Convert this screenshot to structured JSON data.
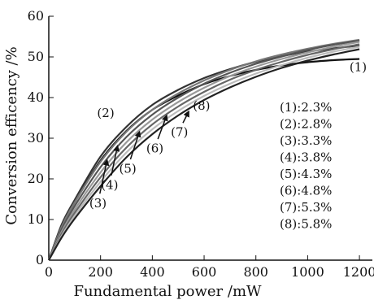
{
  "chart_data": {
    "type": "line",
    "xlabel": "Fundamental power /mW",
    "ylabel": "Conversion efficency /%",
    "xlim": [
      0,
      1250
    ],
    "ylim": [
      0,
      60
    ],
    "xticks": [
      0,
      200,
      400,
      600,
      800,
      1000,
      1200
    ],
    "yticks": [
      0,
      10,
      20,
      30,
      40,
      50,
      60
    ],
    "grid": false,
    "series": [
      {
        "name": "(1)",
        "color": "#111111",
        "x": [
          0,
          50,
          100,
          200,
          300,
          400,
          500,
          600,
          700,
          800,
          900,
          1000,
          1100,
          1200
        ],
        "y": [
          0,
          8.5,
          14.2,
          24.5,
          31.8,
          37.0,
          40.5,
          43.3,
          45.3,
          46.8,
          47.9,
          48.7,
          49.2,
          49.5
        ]
      },
      {
        "name": "(2)",
        "color": "#333333",
        "x": [
          0,
          50,
          100,
          200,
          300,
          400,
          500,
          600,
          700,
          800,
          900,
          1000,
          1100,
          1200
        ],
        "y": [
          0,
          8.8,
          14.8,
          25.5,
          32.8,
          38.2,
          41.9,
          44.8,
          47.0,
          48.8,
          50.2,
          51.3,
          52.1,
          52.8
        ]
      },
      {
        "name": "(3)",
        "color": "#777777",
        "x": [
          0,
          50,
          100,
          200,
          300,
          400,
          500,
          600,
          700,
          800,
          900,
          1000,
          1100,
          1200
        ],
        "y": [
          0,
          8.2,
          14.2,
          24.2,
          31.6,
          37.0,
          41.0,
          44.2,
          46.8,
          48.9,
          50.6,
          52.0,
          53.2,
          54.2
        ]
      },
      {
        "name": "(4)",
        "color": "#555555",
        "x": [
          0,
          50,
          100,
          200,
          300,
          400,
          500,
          600,
          700,
          800,
          900,
          1000,
          1100,
          1200
        ],
        "y": [
          0,
          7.6,
          13.3,
          22.9,
          30.3,
          35.8,
          40.0,
          43.4,
          46.1,
          48.3,
          50.1,
          51.7,
          53.0,
          54.0
        ]
      },
      {
        "name": "(5)",
        "color": "#999999",
        "x": [
          0,
          50,
          100,
          200,
          300,
          400,
          500,
          600,
          700,
          800,
          900,
          1000,
          1100,
          1200
        ],
        "y": [
          0,
          7.0,
          12.4,
          21.6,
          29.0,
          34.6,
          38.9,
          42.4,
          45.3,
          47.6,
          49.5,
          51.1,
          52.5,
          53.7
        ]
      },
      {
        "name": "(6)",
        "color": "#666666",
        "x": [
          0,
          50,
          100,
          200,
          300,
          400,
          500,
          600,
          700,
          800,
          900,
          1000,
          1100,
          1200
        ],
        "y": [
          0,
          6.5,
          11.6,
          20.4,
          27.7,
          33.4,
          37.8,
          41.4,
          44.4,
          46.8,
          48.8,
          50.5,
          51.9,
          53.1
        ]
      },
      {
        "name": "(7)",
        "color": "#bbbbbb",
        "x": [
          0,
          50,
          100,
          200,
          300,
          400,
          500,
          600,
          700,
          800,
          900,
          1000,
          1100,
          1200
        ],
        "y": [
          0,
          6.0,
          10.9,
          19.3,
          26.5,
          32.2,
          36.7,
          40.4,
          43.4,
          45.9,
          48.0,
          49.8,
          51.3,
          52.5
        ]
      },
      {
        "name": "(8)",
        "color": "#222222",
        "x": [
          0,
          50,
          100,
          200,
          300,
          400,
          500,
          600,
          700,
          800,
          900,
          1000,
          1100,
          1200
        ],
        "y": [
          0,
          5.6,
          10.2,
          18.2,
          25.3,
          31.0,
          35.6,
          39.4,
          42.5,
          45.1,
          47.3,
          49.1,
          50.6,
          51.9
        ]
      }
    ],
    "legend": [
      {
        "label": "(1):",
        "value": "2.3%"
      },
      {
        "label": "(2):",
        "value": "2.8%"
      },
      {
        "label": "(3):",
        "value": "3.3%"
      },
      {
        "label": "(4):",
        "value": "3.8%"
      },
      {
        "label": "(5):",
        "value": "4.3%"
      },
      {
        "label": "(6):",
        "value": "4.8%"
      },
      {
        "label": "(7):",
        "value": "5.3%"
      },
      {
        "label": "(8):",
        "value": "5.8%"
      }
    ],
    "legend_position": "right",
    "annotations": [
      {
        "text": "(1)",
        "x": 1195,
        "y": 46.5,
        "arrow": false
      },
      {
        "text": "(2)",
        "x": 220,
        "y": 35.2,
        "arrow": false
      },
      {
        "text": "(3)",
        "x": 190,
        "y": 13.0,
        "arrow": true,
        "target_x": 225,
        "target_y": 24.5
      },
      {
        "text": "(4)",
        "x": 235,
        "y": 17.5,
        "arrow": true,
        "target_x": 265,
        "target_y": 28.0
      },
      {
        "text": "(5)",
        "x": 305,
        "y": 21.5,
        "arrow": true,
        "target_x": 350,
        "target_y": 31.5
      },
      {
        "text": "(6)",
        "x": 410,
        "y": 26.5,
        "arrow": true,
        "target_x": 455,
        "target_y": 35.5
      },
      {
        "text": "(7)",
        "x": 505,
        "y": 30.5,
        "arrow": true,
        "target_x": 540,
        "target_y": 36.5
      },
      {
        "text": "(8)",
        "x": 590,
        "y": 37.0,
        "arrow": false
      }
    ]
  }
}
